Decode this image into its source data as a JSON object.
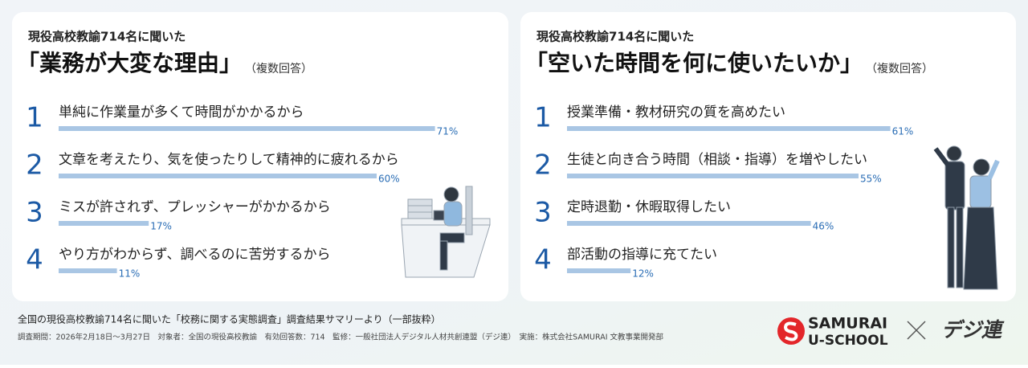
{
  "chart_data": [
    {
      "type": "bar",
      "orientation": "horizontal",
      "subtitle": "現役高校教諭714名に聞いた",
      "title": "「業務が大変な理由」",
      "title_note": "（複数回答）",
      "ranks": [
        1,
        2,
        3,
        4
      ],
      "categories": [
        "単純に作業量が多くて時間がかかるから",
        "文章を考えたり、気を使ったりして精神的に疲れるから",
        "ミスが許されず、プレッシャーがかかるから",
        "やり方がわからず、調べるのに苦労するから"
      ],
      "values": [
        71,
        60,
        17,
        11
      ],
      "value_labels": [
        "71%",
        "60%",
        "17%",
        "11%"
      ],
      "color": "#a9c6e4"
    },
    {
      "type": "bar",
      "orientation": "horizontal",
      "subtitle": "現役高校教諭714名に聞いた",
      "title": "「空いた時間を何に使いたいか」",
      "title_note": "（複数回答）",
      "ranks": [
        1,
        2,
        3,
        4
      ],
      "categories": [
        "授業準備・教材研究の質を高めたい",
        "生徒と向き合う時間（相談・指導）を増やしたい",
        "定時退勤・休暇取得したい",
        "部活動の指導に充てたい"
      ],
      "values": [
        61,
        55,
        46,
        12
      ],
      "value_labels": [
        "61%",
        "55%",
        "46%",
        "12%"
      ],
      "color": "#a9c6e4"
    }
  ],
  "footer": {
    "source": "全国の現役高校教諭714名に聞いた「校務に関する実態調査」調査結果サマリーより（一部抜粋）",
    "details": "調査期間：2026年2月18日〜3月27日　対象者：全国の現役高校教諭　有効回答数：714　監修：一般社団法人デジタル人材共創連盟（デジ連）　実施：株式会社SAMURAI 文教事業開発部"
  },
  "logos": {
    "samurai_top": "SAMURAI",
    "samurai_bottom": "U-SCHOOL",
    "partner": "デジ連"
  }
}
